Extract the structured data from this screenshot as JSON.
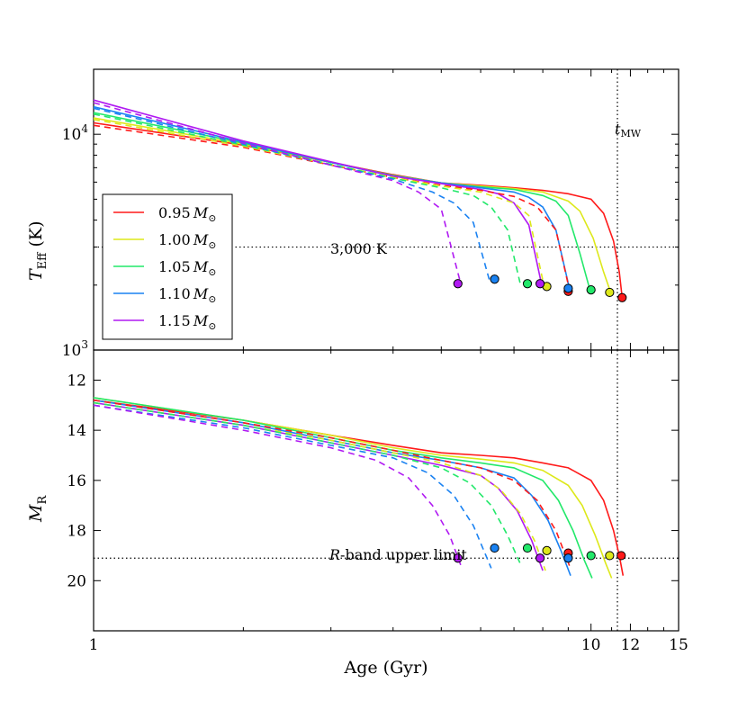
{
  "chart_data": {
    "type": "line",
    "x_axis": {
      "label": "Age (Gyr)",
      "scale": "log",
      "range": [
        1,
        15
      ],
      "ticks": [
        1,
        10,
        12,
        15
      ],
      "tick_labels": [
        "1",
        "10",
        "12",
        "15"
      ]
    },
    "legend": {
      "placement": "left",
      "items": [
        {
          "mass": "0.95",
          "label": "0.95 M⊙",
          "color": "#ff1a1a"
        },
        {
          "mass": "1.00",
          "label": "1.00 M⊙",
          "color": "#dde81a"
        },
        {
          "mass": "1.05",
          "label": "1.05 M⊙",
          "color": "#22e86a"
        },
        {
          "mass": "1.10",
          "label": "1.10 M⊙",
          "color": "#1a82f2"
        },
        {
          "mass": "1.15",
          "label": "1.15 M⊙",
          "color": "#b01af2"
        }
      ]
    },
    "reference_lines": {
      "t_MW": {
        "age": 11.3,
        "label_main": "t",
        "label_sub": "MW"
      }
    },
    "top_panel": {
      "y_label_main": "T",
      "y_label_sub": "Eff",
      "y_label_unit": " (K)",
      "y_scale": "log",
      "y_range": [
        1000,
        20000
      ],
      "y_ticks": [
        {
          "value": 1000,
          "base": "10",
          "exp": "3"
        },
        {
          "value": 10000,
          "base": "10",
          "exp": "4"
        }
      ],
      "hline": {
        "value": 3000,
        "label": "3,000 K"
      },
      "series": [
        {
          "mass": "0.95",
          "style": "solid",
          "x": [
            1,
            2,
            3,
            4,
            5,
            6,
            7,
            8,
            9,
            10,
            10.6,
            11.1,
            11.4,
            11.55
          ],
          "y": [
            11300,
            8900,
            7400,
            6500,
            5950,
            5800,
            5650,
            5500,
            5300,
            5000,
            4300,
            3200,
            2300,
            1750
          ]
        },
        {
          "mass": "1.00",
          "style": "solid",
          "x": [
            1,
            2,
            3,
            4,
            5,
            6,
            7,
            8,
            9,
            9.5,
            10.1,
            10.6,
            10.95
          ],
          "y": [
            11900,
            9000,
            7400,
            6450,
            5950,
            5750,
            5600,
            5400,
            4900,
            4400,
            3300,
            2300,
            1850
          ]
        },
        {
          "mass": "1.05",
          "style": "solid",
          "x": [
            1,
            2,
            3,
            4,
            5,
            6,
            7,
            8,
            8.5,
            9.0,
            9.5,
            9.95
          ],
          "y": [
            12600,
            9100,
            7400,
            6450,
            5950,
            5700,
            5550,
            5200,
            4900,
            4200,
            2800,
            1900
          ]
        },
        {
          "mass": "1.10",
          "style": "solid",
          "x": [
            1,
            2,
            3,
            4,
            5,
            6,
            7,
            7.5,
            8.0,
            8.5,
            9.05
          ],
          "y": [
            13400,
            9200,
            7400,
            6400,
            5950,
            5650,
            5400,
            5100,
            4600,
            3600,
            1930
          ]
        },
        {
          "mass": "1.15",
          "style": "solid",
          "x": [
            1,
            2,
            3,
            4,
            5,
            6,
            6.5,
            7.0,
            7.5,
            7.95
          ],
          "y": [
            14400,
            9300,
            7450,
            6400,
            5900,
            5550,
            5300,
            4800,
            3800,
            2030
          ]
        },
        {
          "mass": "0.95",
          "style": "dashed",
          "x": [
            1,
            2,
            3,
            4,
            5,
            6,
            7,
            7.8,
            8.5,
            9.05
          ],
          "y": [
            11000,
            8700,
            7200,
            6300,
            5800,
            5500,
            5150,
            4600,
            3600,
            1900
          ]
        },
        {
          "mass": "1.00",
          "style": "dashed",
          "x": [
            1,
            2,
            3,
            4,
            5,
            6,
            7,
            7.5,
            8.05
          ],
          "y": [
            11700,
            8800,
            7250,
            6300,
            5750,
            5400,
            4800,
            4200,
            1970
          ]
        },
        {
          "mass": "1.05",
          "style": "dashed",
          "x": [
            1,
            2,
            3,
            4,
            5,
            5.8,
            6.3,
            6.8,
            7.2
          ],
          "y": [
            12400,
            8900,
            7250,
            6250,
            5650,
            5200,
            4600,
            3600,
            2050
          ]
        },
        {
          "mass": "1.10",
          "style": "dashed",
          "x": [
            1,
            2,
            3,
            4,
            4.8,
            5.3,
            5.8,
            6.25
          ],
          "y": [
            13200,
            9000,
            7200,
            6200,
            5400,
            4800,
            3900,
            2100
          ]
        },
        {
          "mass": "1.15",
          "style": "dashed",
          "x": [
            1,
            2,
            3,
            4,
            4.5,
            5.0,
            5.45
          ],
          "y": [
            14000,
            9100,
            7200,
            6100,
            5400,
            4500,
            2100
          ]
        }
      ],
      "endpoints": [
        {
          "mass": "0.95",
          "x": 11.55,
          "y": 1750
        },
        {
          "mass": "0.95",
          "x": 9.0,
          "y": 1870
        },
        {
          "mass": "1.00",
          "x": 10.9,
          "y": 1850
        },
        {
          "mass": "1.00",
          "x": 8.15,
          "y": 1970
        },
        {
          "mass": "1.05",
          "x": 10.0,
          "y": 1900
        },
        {
          "mass": "1.05",
          "x": 7.45,
          "y": 2030
        },
        {
          "mass": "1.10",
          "x": 9.0,
          "y": 1930
        },
        {
          "mass": "1.10",
          "x": 6.4,
          "y": 2130
        },
        {
          "mass": "1.15",
          "x": 7.9,
          "y": 2030
        },
        {
          "mass": "1.15",
          "x": 5.4,
          "y": 2030
        }
      ]
    },
    "bottom_panel": {
      "y_label_main": "M",
      "y_label_sub": "R",
      "y_scale": "linear",
      "y_inverted": true,
      "y_range": [
        22,
        10.8
      ],
      "y_ticks": [
        12,
        14,
        16,
        18,
        20
      ],
      "hline": {
        "value": 19.1,
        "label_italic": "R",
        "label_rest": "-band upper limit"
      },
      "series": [
        {
          "mass": "0.95",
          "style": "solid",
          "x": [
            1,
            2,
            3,
            4,
            5,
            6,
            7,
            8,
            9,
            10,
            10.6,
            11.1,
            11.4,
            11.6
          ],
          "y": [
            12.8,
            13.6,
            14.2,
            14.6,
            14.9,
            15.0,
            15.1,
            15.3,
            15.5,
            16.0,
            16.8,
            18.0,
            19.0,
            19.8
          ]
        },
        {
          "mass": "1.00",
          "style": "solid",
          "x": [
            1,
            2,
            3,
            4,
            5,
            6,
            7,
            8,
            9,
            9.6,
            10.2,
            10.7,
            11.0
          ],
          "y": [
            12.7,
            13.6,
            14.2,
            14.7,
            15.0,
            15.15,
            15.3,
            15.6,
            16.2,
            17.0,
            18.2,
            19.3,
            19.9
          ]
        },
        {
          "mass": "1.05",
          "style": "solid",
          "x": [
            1,
            2,
            3,
            4,
            5,
            6,
            7,
            8,
            8.6,
            9.2,
            9.7,
            10.05
          ],
          "y": [
            12.7,
            13.6,
            14.3,
            14.8,
            15.1,
            15.3,
            15.5,
            16.0,
            16.8,
            18.0,
            19.2,
            19.9
          ]
        },
        {
          "mass": "1.10",
          "style": "solid",
          "x": [
            1,
            2,
            3,
            4,
            5,
            6,
            7,
            7.6,
            8.2,
            8.7,
            9.1
          ],
          "y": [
            12.8,
            13.7,
            14.4,
            14.9,
            15.2,
            15.5,
            15.9,
            16.6,
            17.6,
            18.8,
            19.8
          ]
        },
        {
          "mass": "1.15",
          "style": "solid",
          "x": [
            1,
            2,
            3,
            4,
            5,
            6,
            6.5,
            7.1,
            7.6,
            8.0
          ],
          "y": [
            12.9,
            13.8,
            14.5,
            15.0,
            15.4,
            15.8,
            16.3,
            17.2,
            18.4,
            19.6
          ]
        },
        {
          "mass": "0.95",
          "style": "dashed",
          "x": [
            1,
            2,
            3,
            4,
            5,
            6,
            7,
            7.8,
            8.5,
            9.05
          ],
          "y": [
            12.8,
            13.7,
            14.3,
            14.8,
            15.2,
            15.5,
            16.0,
            16.8,
            18.0,
            19.4
          ]
        },
        {
          "mass": "1.00",
          "style": "dashed",
          "x": [
            1,
            2,
            3,
            4,
            5,
            6,
            6.6,
            7.2,
            7.7,
            8.1
          ],
          "y": [
            12.9,
            13.8,
            14.4,
            14.9,
            15.3,
            15.8,
            16.4,
            17.3,
            18.4,
            19.6
          ]
        },
        {
          "mass": "1.05",
          "style": "dashed",
          "x": [
            1,
            2,
            3,
            4,
            5,
            5.7,
            6.3,
            6.8,
            7.2
          ],
          "y": [
            12.9,
            13.8,
            14.5,
            15.0,
            15.5,
            16.1,
            17.0,
            18.2,
            19.3
          ]
        },
        {
          "mass": "1.10",
          "style": "dashed",
          "x": [
            1,
            2,
            3,
            4,
            4.7,
            5.3,
            5.8,
            6.3
          ],
          "y": [
            13.0,
            13.9,
            14.6,
            15.1,
            15.7,
            16.6,
            17.8,
            19.5
          ]
        },
        {
          "mass": "1.15",
          "style": "dashed",
          "x": [
            1,
            2,
            3,
            3.7,
            4.3,
            4.8,
            5.2,
            5.5
          ],
          "y": [
            13.0,
            14.0,
            14.7,
            15.2,
            15.9,
            17.0,
            18.2,
            19.5
          ]
        }
      ],
      "endpoints": [
        {
          "mass": "0.95",
          "x": 11.5,
          "y": 19.0
        },
        {
          "mass": "0.95",
          "x": 9.0,
          "y": 18.9
        },
        {
          "mass": "1.00",
          "x": 10.9,
          "y": 19.0
        },
        {
          "mass": "1.00",
          "x": 8.15,
          "y": 18.8
        },
        {
          "mass": "1.05",
          "x": 10.0,
          "y": 19.0
        },
        {
          "mass": "1.05",
          "x": 7.45,
          "y": 18.7
        },
        {
          "mass": "1.10",
          "x": 9.0,
          "y": 19.1
        },
        {
          "mass": "1.10",
          "x": 6.4,
          "y": 18.7
        },
        {
          "mass": "1.15",
          "x": 7.9,
          "y": 19.1
        },
        {
          "mass": "1.15",
          "x": 5.4,
          "y": 19.1
        }
      ]
    }
  }
}
